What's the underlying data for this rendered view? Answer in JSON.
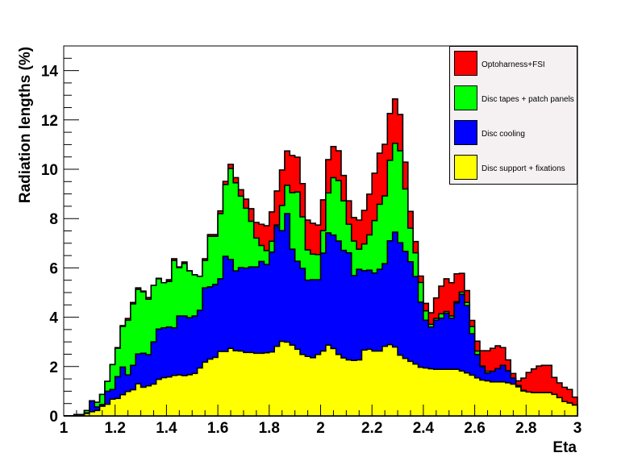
{
  "chart_data": {
    "type": "bar",
    "subtype": "stacked-histogram",
    "title": "",
    "xlabel": "Eta",
    "ylabel": "Radiation lengths (%)",
    "xlim": [
      1,
      3
    ],
    "ylim": [
      0,
      15
    ],
    "bin_width": 0.02,
    "bin_low_edges_start": 1.0,
    "n_bins": 100,
    "grid": false,
    "legend_position": "top-right",
    "xticks": [
      "1",
      "1.2",
      "1.4",
      "1.6",
      "1.8",
      "2",
      "2.2",
      "2.4",
      "2.6",
      "2.8",
      "3"
    ],
    "xtick_values": [
      1,
      1.2,
      1.4,
      1.6,
      1.8,
      2,
      2.2,
      2.4,
      2.6,
      2.8,
      3
    ],
    "yticks": [
      "0",
      "2",
      "4",
      "6",
      "8",
      "10",
      "12",
      "14"
    ],
    "ytick_values": [
      0,
      2,
      4,
      6,
      8,
      10,
      12,
      14
    ],
    "series": [
      {
        "name": "Disc support + fixations",
        "color": "#ffff00",
        "values": [
          0,
          0,
          0.05,
          0.05,
          0.1,
          0.17,
          0.22,
          0.39,
          0.47,
          0.68,
          0.71,
          0.86,
          0.99,
          1.06,
          1.3,
          1.16,
          1.22,
          1.29,
          1.48,
          1.55,
          1.58,
          1.64,
          1.66,
          1.63,
          1.67,
          1.72,
          1.94,
          2.18,
          2.3,
          2.37,
          2.61,
          2.61,
          2.74,
          2.64,
          2.63,
          2.57,
          2.57,
          2.54,
          2.54,
          2.56,
          2.59,
          2.82,
          3.02,
          2.99,
          2.87,
          2.7,
          2.49,
          2.41,
          2.36,
          2.49,
          2.63,
          2.87,
          2.73,
          2.49,
          2.35,
          2.27,
          2.25,
          2.27,
          2.67,
          2.7,
          2.63,
          2.63,
          2.82,
          2.89,
          2.79,
          2.46,
          2.33,
          2.21,
          2.1,
          1.97,
          1.94,
          1.91,
          1.89,
          1.89,
          1.89,
          1.89,
          1.89,
          1.82,
          1.74,
          1.65,
          1.54,
          1.45,
          1.42,
          1.38,
          1.38,
          1.38,
          1.34,
          1.29,
          1.18,
          1.01,
          0.97,
          0.94,
          0.94,
          0.94,
          0.94,
          0.87,
          0.74,
          0.58,
          0.52,
          0.44
        ]
      },
      {
        "name": "Disc cooling",
        "color": "#0000ff",
        "values": [
          0,
          0,
          0,
          0,
          0.02,
          0.44,
          0.14,
          0.07,
          0.53,
          0.39,
          0.88,
          1.12,
          0.67,
          0.99,
          1.21,
          1.38,
          1.26,
          1.71,
          2.04,
          2.02,
          2.02,
          1.93,
          2.39,
          2.42,
          2.31,
          2.33,
          2.34,
          3.01,
          2.93,
          2.96,
          2.95,
          3.86,
          3.6,
          3.24,
          3.38,
          3.42,
          3.47,
          3.5,
          3.72,
          3.58,
          4.05,
          4.86,
          4.49,
          5.21,
          3.89,
          3.57,
          3.49,
          3.09,
          3.16,
          3.03,
          3.97,
          4.55,
          4.6,
          4.6,
          4.36,
          4.34,
          3.44,
          3.67,
          3.22,
          3.21,
          3.16,
          3.31,
          3.35,
          4.21,
          4.66,
          4.56,
          4.34,
          4.04,
          3.55,
          2.64,
          1.94,
          1.69,
          1.99,
          2.07,
          2.27,
          2.07,
          2.69,
          3.11,
          2.73,
          1.68,
          0.95,
          0.55,
          0.32,
          0.43,
          0.54,
          0.67,
          0.49,
          0.24,
          0.05,
          0.02,
          0,
          0,
          0,
          0,
          0,
          0,
          0,
          0,
          0,
          0
        ]
      },
      {
        "name": "Disc tapes + patch panels",
        "color": "#00ff00",
        "values": [
          0,
          0,
          0,
          0,
          0.1,
          0,
          0.19,
          0.41,
          0.4,
          1.01,
          1.15,
          1.65,
          2.22,
          2.49,
          2.62,
          2.49,
          2.25,
          2.29,
          2.04,
          1.83,
          1.85,
          2.73,
          1.96,
          2.13,
          1.9,
          1.67,
          1.38,
          1.11,
          2.05,
          1.95,
          2.64,
          2.91,
          3.69,
          3.57,
          2.9,
          2.43,
          1.85,
          1.17,
          0.65,
          0.56,
          0.44,
          0.06,
          1.02,
          1.15,
          2.29,
          2.81,
          2.09,
          1.23,
          1.04,
          1.02,
          0.91,
          1.62,
          2.33,
          2.45,
          2.01,
          1.16,
          1.4,
          0.82,
          1.08,
          1.43,
          2.13,
          2.64,
          2.75,
          3.26,
          3.6,
          3.73,
          2.53,
          1.36,
          0.96,
          0.8,
          0.38,
          0.11,
          0.07,
          0.18,
          0.07,
          0.09,
          0.05,
          0.09,
          0.13,
          0.29,
          0.14,
          0.02,
          0.07,
          0,
          0,
          0,
          0,
          0,
          0,
          0,
          0,
          0,
          0,
          0,
          0,
          0,
          0,
          0,
          0,
          0
        ]
      },
      {
        "name": "Optoharness+FSI",
        "color": "#ff0000",
        "values": [
          0,
          0,
          0,
          0,
          0,
          0,
          0,
          0,
          0,
          0,
          0.03,
          0.03,
          0.07,
          0.06,
          0.06,
          0.03,
          0.07,
          0,
          0.02,
          0,
          0.07,
          0.07,
          0.03,
          0.06,
          0,
          0,
          0,
          0.07,
          0.07,
          0.07,
          0.11,
          0.13,
          0.17,
          0.21,
          0.26,
          0.37,
          0.51,
          0.63,
          0.86,
          1.01,
          1.19,
          1.38,
          1.44,
          1.39,
          1.51,
          1.41,
          1.35,
          1.21,
          1.25,
          1.2,
          1.25,
          1.35,
          1.26,
          1.21,
          1.03,
          0.95,
          0.95,
          1.18,
          1.36,
          1.65,
          1.92,
          2.07,
          2.09,
          1.9,
          1.8,
          1.47,
          1.09,
          0.68,
          0.46,
          0.26,
          0.3,
          0.47,
          0.83,
          1.12,
          1.33,
          1.35,
          1.13,
          0.76,
          0.48,
          0.25,
          0.4,
          0.62,
          0.83,
          0.93,
          0.92,
          0.72,
          0.44,
          0.19,
          0.19,
          0.5,
          0.79,
          0.96,
          1.08,
          1.11,
          1.11,
          0.69,
          0.6,
          0.58,
          0.55,
          0.32
        ]
      }
    ],
    "legend": [
      {
        "label": "Optoharness+FSI",
        "color": "#ff0000"
      },
      {
        "label": "Disc tapes + patch panels",
        "color": "#00ff00"
      },
      {
        "label": "Disc cooling",
        "color": "#0000ff"
      },
      {
        "label": "Disc support + fixations",
        "color": "#ffff00"
      }
    ]
  }
}
